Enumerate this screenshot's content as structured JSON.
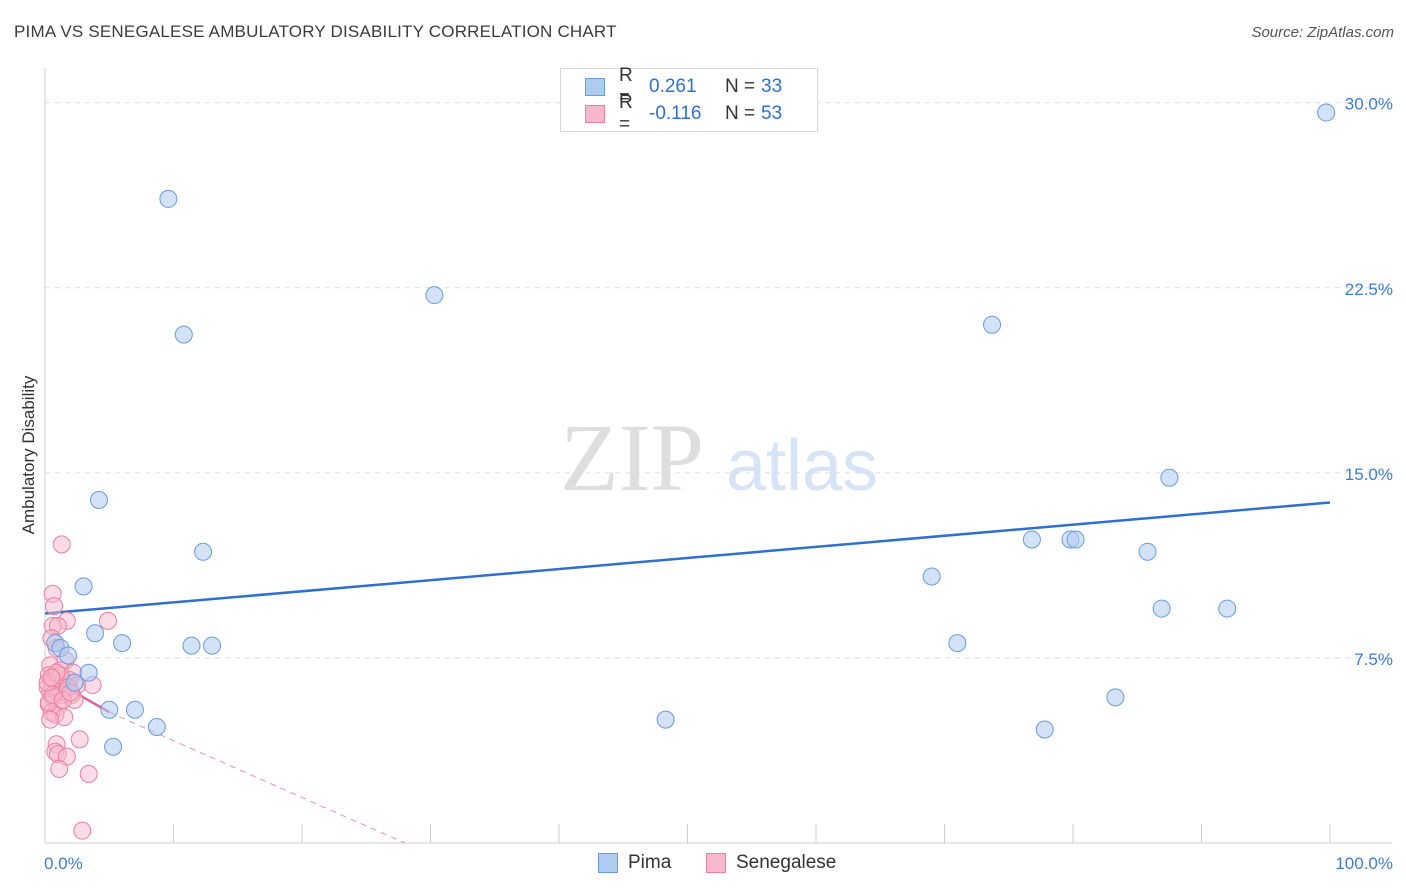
{
  "title": "PIMA VS SENEGALESE AMBULATORY DISABILITY CORRELATION CHART",
  "source": "Source: ZipAtlas.com",
  "watermark": {
    "zip": "ZIP",
    "atlas": "atlas"
  },
  "legend": {
    "rows": [
      {
        "r_label": "R =",
        "r_value": "0.261",
        "n_label": "N =",
        "n_value": "33"
      },
      {
        "r_label": "R =",
        "r_value": "-0.116",
        "n_label": "N =",
        "n_value": "53"
      }
    ]
  },
  "bottom_legend": {
    "pima": "Pima",
    "senegalese": "Senegalese"
  },
  "colors": {
    "pima_fill": "#aecbf0",
    "pima_stroke": "#6b9be0",
    "pima_line": "#2f6fd0",
    "sen_fill": "#f7b8cb",
    "sen_stroke": "#ec7fa3",
    "sen_line": "#e0609a",
    "tick_label": "#3f7ad4",
    "grid": "#dcdcdc"
  },
  "chart_data": {
    "type": "scatter",
    "title": "PIMA VS SENEGALESE AMBULATORY DISABILITY CORRELATION CHART",
    "xlabel": "",
    "ylabel": "Ambulatory Disability",
    "xlim": [
      0,
      100
    ],
    "ylim": [
      0,
      31
    ],
    "x_tick_labels": [
      "0.0%",
      "100.0%"
    ],
    "y_ticks": [
      7.5,
      15.0,
      22.5,
      30.0
    ],
    "y_tick_labels": [
      "7.5%",
      "15.0%",
      "22.5%",
      "30.0%"
    ],
    "series": [
      {
        "name": "Pima",
        "R": 0.261,
        "N": 33,
        "trend": {
          "x": [
            0,
            100
          ],
          "y": [
            9.3,
            13.8
          ],
          "style": "solid"
        },
        "points": [
          [
            9.6,
            26.1
          ],
          [
            10.8,
            20.6
          ],
          [
            30.3,
            22.2
          ],
          [
            73.7,
            21.0
          ],
          [
            99.7,
            29.6
          ],
          [
            4.2,
            13.9
          ],
          [
            12.3,
            11.8
          ],
          [
            3.0,
            10.4
          ],
          [
            11.4,
            8.0
          ],
          [
            13.0,
            8.0
          ],
          [
            6.0,
            8.1
          ],
          [
            3.9,
            8.5
          ],
          [
            0.8,
            8.1
          ],
          [
            1.2,
            7.9
          ],
          [
            1.8,
            7.6
          ],
          [
            3.4,
            6.9
          ],
          [
            2.3,
            6.5
          ],
          [
            5.0,
            5.4
          ],
          [
            7.0,
            5.4
          ],
          [
            5.3,
            3.9
          ],
          [
            48.3,
            5.0
          ],
          [
            69.0,
            10.8
          ],
          [
            71.0,
            8.1
          ],
          [
            76.8,
            12.3
          ],
          [
            79.8,
            12.3
          ],
          [
            80.2,
            12.3
          ],
          [
            85.8,
            11.8
          ],
          [
            87.5,
            14.8
          ],
          [
            86.9,
            9.5
          ],
          [
            92.0,
            9.5
          ],
          [
            83.3,
            5.9
          ],
          [
            77.8,
            4.6
          ],
          [
            8.7,
            4.7
          ]
        ]
      },
      {
        "name": "Senegalese",
        "R": -0.116,
        "N": 53,
        "trend": {
          "x": [
            0,
            5.0
          ],
          "y": [
            6.8,
            5.3
          ],
          "style": "solid"
        },
        "trend_extension": {
          "x": [
            5.0,
            28.0
          ],
          "y": [
            5.3,
            0.0
          ],
          "style": "dashed"
        },
        "points": [
          [
            1.3,
            12.1
          ],
          [
            0.6,
            10.1
          ],
          [
            0.7,
            9.6
          ],
          [
            1.7,
            9.0
          ],
          [
            0.6,
            8.8
          ],
          [
            1.0,
            8.8
          ],
          [
            4.9,
            9.0
          ],
          [
            0.5,
            8.3
          ],
          [
            0.9,
            7.9
          ],
          [
            1.6,
            7.4
          ],
          [
            0.4,
            7.2
          ],
          [
            1.2,
            7.0
          ],
          [
            2.2,
            6.9
          ],
          [
            0.3,
            6.8
          ],
          [
            0.8,
            6.7
          ],
          [
            1.4,
            6.6
          ],
          [
            1.9,
            6.6
          ],
          [
            0.5,
            6.5
          ],
          [
            1.1,
            6.4
          ],
          [
            2.5,
            6.4
          ],
          [
            3.7,
            6.4
          ],
          [
            0.2,
            6.3
          ],
          [
            0.9,
            6.2
          ],
          [
            1.6,
            6.2
          ],
          [
            0.4,
            6.1
          ],
          [
            1.3,
            6.0
          ],
          [
            2.1,
            6.0
          ],
          [
            0.6,
            5.9
          ],
          [
            2.3,
            5.8
          ],
          [
            0.3,
            5.6
          ],
          [
            1.0,
            5.5
          ],
          [
            0.5,
            5.3
          ],
          [
            0.8,
            5.2
          ],
          [
            1.5,
            5.1
          ],
          [
            0.4,
            5.0
          ],
          [
            0.9,
            4.0
          ],
          [
            2.7,
            4.2
          ],
          [
            0.8,
            3.7
          ],
          [
            1.0,
            3.6
          ],
          [
            1.7,
            3.5
          ],
          [
            1.1,
            3.0
          ],
          [
            3.4,
            2.8
          ],
          [
            2.9,
            0.5
          ],
          [
            0.7,
            6.6
          ],
          [
            1.2,
            6.8
          ],
          [
            0.3,
            5.7
          ],
          [
            0.6,
            6.0
          ],
          [
            1.8,
            6.3
          ],
          [
            0.2,
            6.5
          ],
          [
            1.4,
            5.8
          ],
          [
            0.9,
            6.9
          ],
          [
            2.0,
            6.1
          ],
          [
            0.5,
            6.7
          ]
        ]
      }
    ]
  }
}
